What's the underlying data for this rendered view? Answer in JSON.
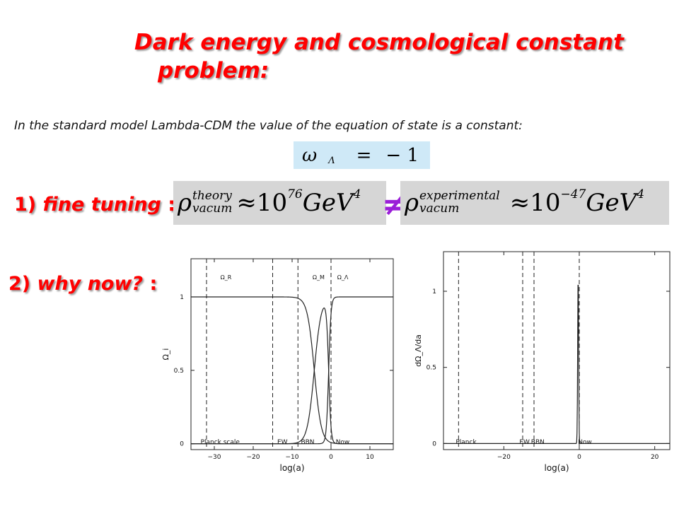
{
  "title": {
    "line1": "Dark energy and cosmological constant",
    "line2": "problem:"
  },
  "intro": "In the standard model Lambda-CDM the value of the equation of state is a constant:",
  "eq_w": {
    "lhs": "ω",
    "sub": "Λ",
    "rel": "=",
    "rhs": "− 1"
  },
  "eq_theory": {
    "rho": "ρ",
    "sup": "theory",
    "sub": "vacum",
    "approx": "≈",
    "value": "10",
    "exp": "76",
    "unit": "GeV",
    "unit_exp": "4"
  },
  "neq": "≠",
  "eq_exp": {
    "rho": "ρ",
    "sup": "experimental",
    "sub": "vacum",
    "approx": "≈",
    "value": "10",
    "exp": "−47",
    "unit": "GeV",
    "unit_exp": "4"
  },
  "item1": {
    "num": "1)",
    "text": "fine tuning",
    "colon": ":"
  },
  "item2": {
    "num": "2)",
    "text": "why now?",
    "colon": ":"
  },
  "chart_data": [
    {
      "type": "line",
      "xlabel": "log(a)",
      "ylabel": "Ω_i",
      "xlim": [
        -36,
        16
      ],
      "ylim": [
        -0.04,
        1.26
      ],
      "xticks": [
        -30,
        -20,
        -10,
        0,
        10
      ],
      "xtick_labels": [
        "−30",
        "−20",
        "−10",
        "0",
        "10"
      ],
      "yticks": [
        0,
        0.5,
        1
      ],
      "ytick_labels": [
        "0",
        "0.5",
        "1"
      ],
      "vlines": [
        -32,
        -15,
        -8.5,
        0
      ],
      "region_labels": [
        {
          "text": "Ω_R",
          "x": -27,
          "y": 1.12
        },
        {
          "text": "Ω_M",
          "x": -3.2,
          "y": 1.12
        },
        {
          "text": "Ω_Λ",
          "x": 3,
          "y": 1.12
        }
      ],
      "bottom_labels": [
        {
          "text": "Planck scale",
          "x": -28.5
        },
        {
          "text": "EW",
          "x": -12.5
        },
        {
          "text": "BBN",
          "x": -6
        },
        {
          "text": "Now",
          "x": 3
        }
      ],
      "series": [
        {
          "kind": "radiation",
          "x0": -4.3,
          "w": 0.9
        },
        {
          "kind": "matter",
          "x0": -4.3,
          "w": 0.9,
          "x1": -0.6,
          "w1": 0.3
        },
        {
          "kind": "lambda",
          "x0": -0.6,
          "w": 0.3
        }
      ]
    },
    {
      "type": "line",
      "xlabel": "log(a)",
      "ylabel": "dΩ_Λ/da",
      "xlim": [
        -36,
        24
      ],
      "ylim": [
        -0.04,
        1.26
      ],
      "xticks": [
        -20,
        0,
        20
      ],
      "xtick_labels": [
        "−20",
        "0",
        "20"
      ],
      "yticks": [
        0,
        0.5,
        1
      ],
      "ytick_labels": [
        "0",
        "0.5",
        "1"
      ],
      "vlines": [
        -32,
        -15,
        -12,
        0
      ],
      "bottom_labels": [
        {
          "text": "Planck",
          "x": -30
        },
        {
          "text": "EW",
          "x": -14.5
        },
        {
          "text": "BBN",
          "x": -11
        },
        {
          "text": "Now",
          "x": 1.5
        }
      ],
      "peak": {
        "x0": -0.3,
        "w": 0.18,
        "height": 1.1
      }
    }
  ]
}
